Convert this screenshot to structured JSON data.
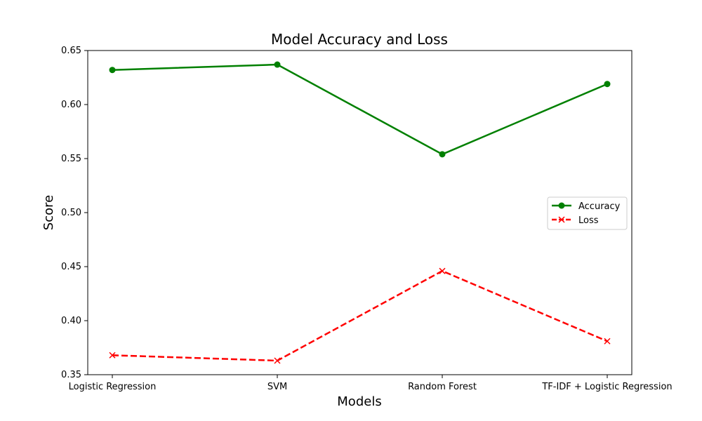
{
  "chart_data": {
    "type": "line",
    "title": "Model Accuracy and Loss",
    "xlabel": "Models",
    "ylabel": "Score",
    "categories": [
      "Logistic Regression",
      "SVM",
      "Random Forest",
      "TF-IDF + Logistic Regression"
    ],
    "ylim": [
      0.35,
      0.65
    ],
    "yticks": [
      "0.35",
      "0.40",
      "0.45",
      "0.50",
      "0.55",
      "0.60",
      "0.65"
    ],
    "grid": false,
    "legend_position": "center-right",
    "series": [
      {
        "name": "Accuracy",
        "values": [
          0.632,
          0.637,
          0.554,
          0.619
        ],
        "color": "#008000",
        "marker": "circle",
        "line_style": "solid"
      },
      {
        "name": "Loss",
        "values": [
          0.368,
          0.363,
          0.446,
          0.381
        ],
        "color": "#ff0000",
        "marker": "x",
        "line_style": "dashed"
      }
    ]
  }
}
